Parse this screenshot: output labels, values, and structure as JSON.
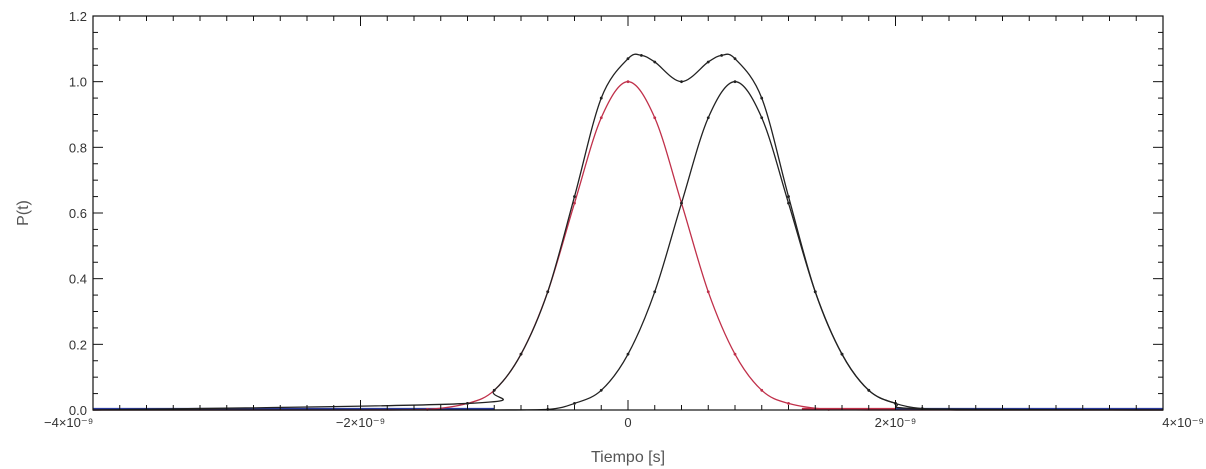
{
  "chart_data": {
    "type": "line",
    "title": "",
    "xlabel": "Tiempo [s]",
    "ylabel": "P(t)",
    "xlim": [
      -4e-09,
      4e-09
    ],
    "ylim": [
      0,
      1.2
    ],
    "grid": false,
    "legend": "none",
    "x_ticks": [
      {
        "value": -4e-09,
        "label": "−4×10⁻⁹"
      },
      {
        "value": -2e-09,
        "label": "−2×10⁻⁹"
      },
      {
        "value": 0,
        "label": "0"
      },
      {
        "value": 2e-09,
        "label": "2×10⁻⁹"
      },
      {
        "value": 4e-09,
        "label": "4×10⁻⁹"
      }
    ],
    "y_ticks": [
      {
        "value": 0.0,
        "label": "0.0"
      },
      {
        "value": 0.2,
        "label": "0.2"
      },
      {
        "value": 0.4,
        "label": "0.4"
      },
      {
        "value": 0.6,
        "label": "0.6"
      },
      {
        "value": 0.8,
        "label": "0.8"
      },
      {
        "value": 1.0,
        "label": "1.0"
      },
      {
        "value": 1.2,
        "label": "1.2"
      }
    ],
    "series": [
      {
        "color": "#c0304a",
        "x": [
          -4e-09,
          -3e-09,
          -2e-09,
          -1.5e-09,
          -1.2e-09,
          -1e-09,
          -8e-10,
          -6e-10,
          -4e-10,
          -2e-10,
          0,
          2e-10,
          4e-10,
          6e-10,
          8e-10,
          1e-09,
          1.2e-09,
          1.5e-09,
          2e-09,
          3e-09,
          4e-09
        ],
        "y": [
          0,
          0,
          0,
          0.002,
          0.02,
          0.06,
          0.17,
          0.36,
          0.63,
          0.89,
          1.0,
          0.89,
          0.63,
          0.36,
          0.17,
          0.06,
          0.02,
          0.002,
          0,
          0,
          0
        ]
      },
      {
        "color": "#222222",
        "x": [
          -4e-09,
          -2e-09,
          -1e-09,
          -6e-10,
          -4e-10,
          -2e-10,
          0,
          2e-10,
          4e-10,
          6e-10,
          8e-10,
          1e-09,
          1.2e-09,
          1.4e-09,
          1.6e-09,
          1.8e-09,
          2e-09,
          2.2e-09,
          2.5e-09,
          3e-09,
          4e-09
        ],
        "y": [
          0,
          0,
          0,
          0.002,
          0.02,
          0.06,
          0.17,
          0.36,
          0.63,
          0.89,
          1.0,
          0.89,
          0.63,
          0.36,
          0.17,
          0.06,
          0.02,
          0.004,
          0,
          0,
          0
        ]
      },
      {
        "color": "#222222",
        "x": [
          -4e-09,
          -1.2e-09,
          -1e-09,
          -8e-10,
          -6e-10,
          -4e-10,
          -2e-10,
          0,
          1e-10,
          2e-10,
          4e-10,
          6e-10,
          7e-10,
          8e-10,
          1e-09,
          1.2e-09,
          1.4e-09,
          1.6e-09,
          1.8e-09,
          2e-09,
          2.2e-09,
          4e-09
        ],
        "y": [
          0,
          0.02,
          0.06,
          0.17,
          0.36,
          0.65,
          0.95,
          1.07,
          1.08,
          1.06,
          1.0,
          1.06,
          1.08,
          1.07,
          0.95,
          0.65,
          0.36,
          0.17,
          0.06,
          0.02,
          0.004,
          0
        ]
      }
    ],
    "baseline_segments": [
      {
        "color": "#2a3a9c",
        "x": [
          -4e-09,
          -1e-09
        ]
      },
      {
        "color": "#c0304a",
        "x": [
          1.3e-09,
          2e-09
        ]
      },
      {
        "color": "#2a3a9c",
        "x": [
          2e-09,
          4e-09
        ]
      }
    ]
  }
}
